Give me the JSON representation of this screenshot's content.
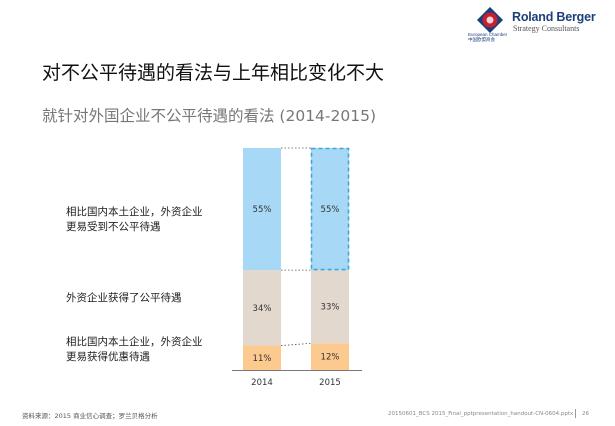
{
  "header": {
    "brand_name": "Roland Berger",
    "brand_sub": "Strategy Consultants",
    "chamber_line1": "European Chamber",
    "chamber_line2": "中国欧盟商会"
  },
  "title": "对不公平待遇的看法与上年相比变化不大",
  "chart_data": {
    "type": "bar",
    "stacked": true,
    "title": "就针对外国企业不公平待遇的看法 (2014-2015)",
    "categories": [
      "2014",
      "2015"
    ],
    "series": [
      {
        "name": "相比国内本土企业，外资企业更易获得优惠待遇",
        "values": [
          11,
          12
        ],
        "labels": [
          "11%",
          "12%"
        ],
        "color": "#fcc98f"
      },
      {
        "name": "外资企业获得了公平待遇",
        "values": [
          34,
          33
        ],
        "labels": [
          "34%",
          "33%"
        ],
        "color": "#e3d8ce"
      },
      {
        "name": "相比国内本土企业，外资企业更易受到不公平待遇",
        "values": [
          55,
          55
        ],
        "labels": [
          "55%",
          "55%"
        ],
        "color": "#a7d9f7"
      }
    ],
    "highlight": {
      "category": "2015",
      "series": 2
    },
    "ylim": [
      0,
      100
    ],
    "grid": false,
    "legend": "left"
  },
  "row_labels": {
    "unfair": [
      "相比国内本土企业，外资企业",
      "更易受到不公平待遇"
    ],
    "fair": [
      "外资企业获得了公平待遇"
    ],
    "favorable": [
      "相比国内本土企业，外资企业",
      "更易获得优惠待遇"
    ]
  },
  "footer": {
    "source": "资料来源：2015 商业信心调查；罗兰贝格分析",
    "file": "20150601_BCS 2015_Final_pptpresentation_handout-CN-0604.pptx",
    "page": "26"
  },
  "colors": {
    "accent_blue": "#3fa7d6",
    "brand_navy": "#1c3f7c",
    "brand_red": "#c8202f"
  }
}
